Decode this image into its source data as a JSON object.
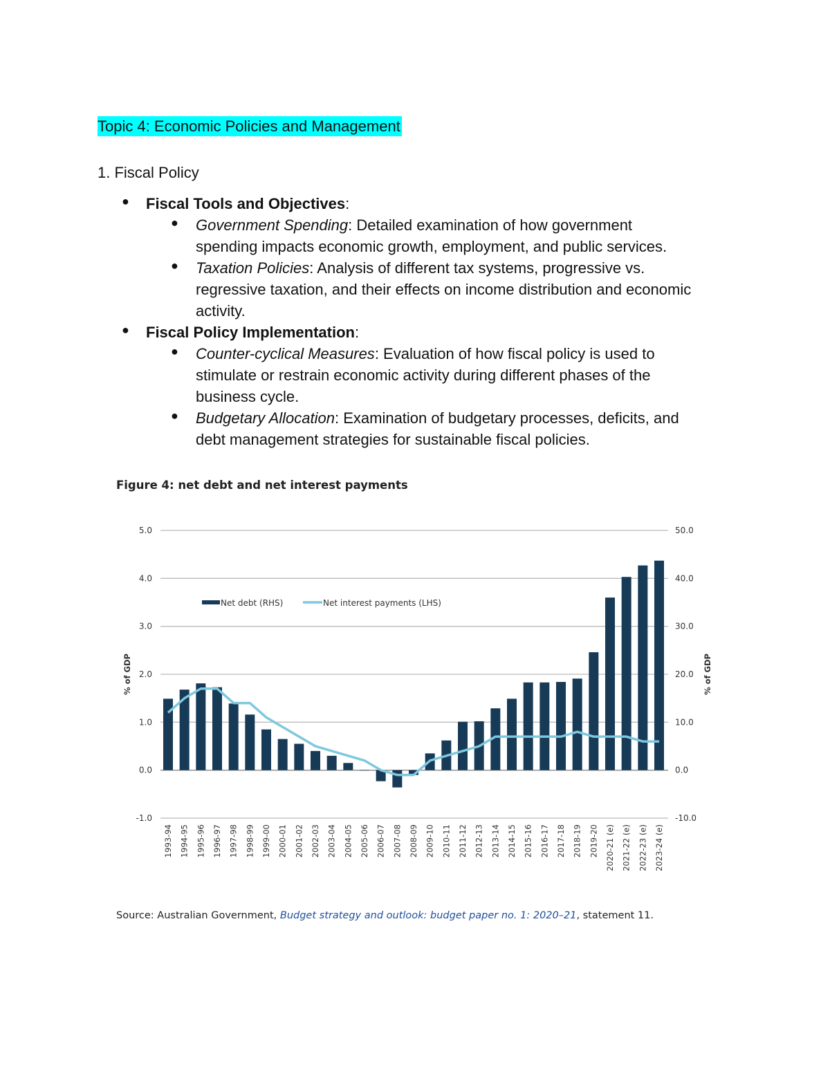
{
  "topic_heading": "Topic 4: Economic Policies and Management",
  "section_heading": "1. Fiscal Policy",
  "sections": [
    {
      "title": "Fiscal Tools and Objectives",
      "items": [
        {
          "term": "Government Spending",
          "lines": [
            ": Detailed examination of how government",
            "spending impacts economic growth, employment, and public services."
          ]
        },
        {
          "term": "Taxation Policies",
          "lines": [
            ": Analysis of different tax systems, progressive vs.",
            "regressive taxation, and their effects on income distribution and economic",
            "activity."
          ]
        }
      ]
    },
    {
      "title": "Fiscal Policy Implementation",
      "items": [
        {
          "term": "Counter-cyclical Measures",
          "lines": [
            ": Evaluation of how fiscal policy is used to",
            "stimulate or restrain economic activity during different phases of the",
            "business cycle."
          ]
        },
        {
          "term": "Budgetary Allocation",
          "lines": [
            ": Examination of budgetary processes, deficits, and",
            "debt management strategies for sustainable fiscal policies."
          ]
        }
      ]
    }
  ],
  "figure": {
    "title": "Figure 4: net debt and net interest payments",
    "source_prefix": "Source: Australian Government, ",
    "source_link": "Budget strategy and outlook: budget paper no. 1: 2020–21",
    "source_suffix": ", statement 11."
  },
  "chart_data": {
    "type": "bar+line",
    "ylabel_left": "% of GDP",
    "ylabel_right": "% of GDP",
    "ylim_left": [
      -1.0,
      5.0
    ],
    "ylim_right": [
      -10.0,
      50.0
    ],
    "yticks_left": [
      "5.0",
      "4.0",
      "3.0",
      "2.0",
      "1.0",
      "0.0",
      "-1.0"
    ],
    "yticks_right": [
      "50.0",
      "40.0",
      "30.0",
      "20.0",
      "10.0",
      "0.0",
      "-10.0"
    ],
    "grid": true,
    "legend_position": "top-left",
    "categories": [
      "1993-94",
      "1994-95",
      "1995-96",
      "1996-97",
      "1997-98",
      "1998-99",
      "1999-00",
      "2000-01",
      "2001-02",
      "2002-03",
      "2003-04",
      "2004-05",
      "2005-06",
      "2006-07",
      "2007-08",
      "2008-09",
      "2009-10",
      "2010-11",
      "2011-12",
      "2012-13",
      "2013-14",
      "2014-15",
      "2015-16",
      "2016-17",
      "2017-18",
      "2018-19",
      "2019-20",
      "2020-21 (e)",
      "2021-22 (e)",
      "2022-23 (e)",
      "2023-24 (e)"
    ],
    "series": [
      {
        "name": "Net debt (RHS)",
        "type": "bar",
        "axis": "right",
        "color": "#173a57",
        "values": [
          14.9,
          16.8,
          18.1,
          17.3,
          13.9,
          11.6,
          8.5,
          6.5,
          5.5,
          4.0,
          3.0,
          1.5,
          0.0,
          -2.3,
          -3.6,
          -1.0,
          3.5,
          6.2,
          10.1,
          10.2,
          12.9,
          14.9,
          18.3,
          18.3,
          18.4,
          19.1,
          24.6,
          36.0,
          40.3,
          42.7,
          43.7
        ]
      },
      {
        "name": "Net interest payments (LHS)",
        "type": "line",
        "axis": "left",
        "color": "#7ec8de",
        "values": [
          1.2,
          1.5,
          1.7,
          1.7,
          1.4,
          1.4,
          1.1,
          0.9,
          0.7,
          0.5,
          0.4,
          0.3,
          0.2,
          0.0,
          -0.1,
          -0.1,
          0.2,
          0.3,
          0.4,
          0.5,
          0.7,
          0.7,
          0.7,
          0.7,
          0.7,
          0.8,
          0.7,
          0.7,
          0.7,
          0.6,
          0.6
        ]
      }
    ]
  }
}
